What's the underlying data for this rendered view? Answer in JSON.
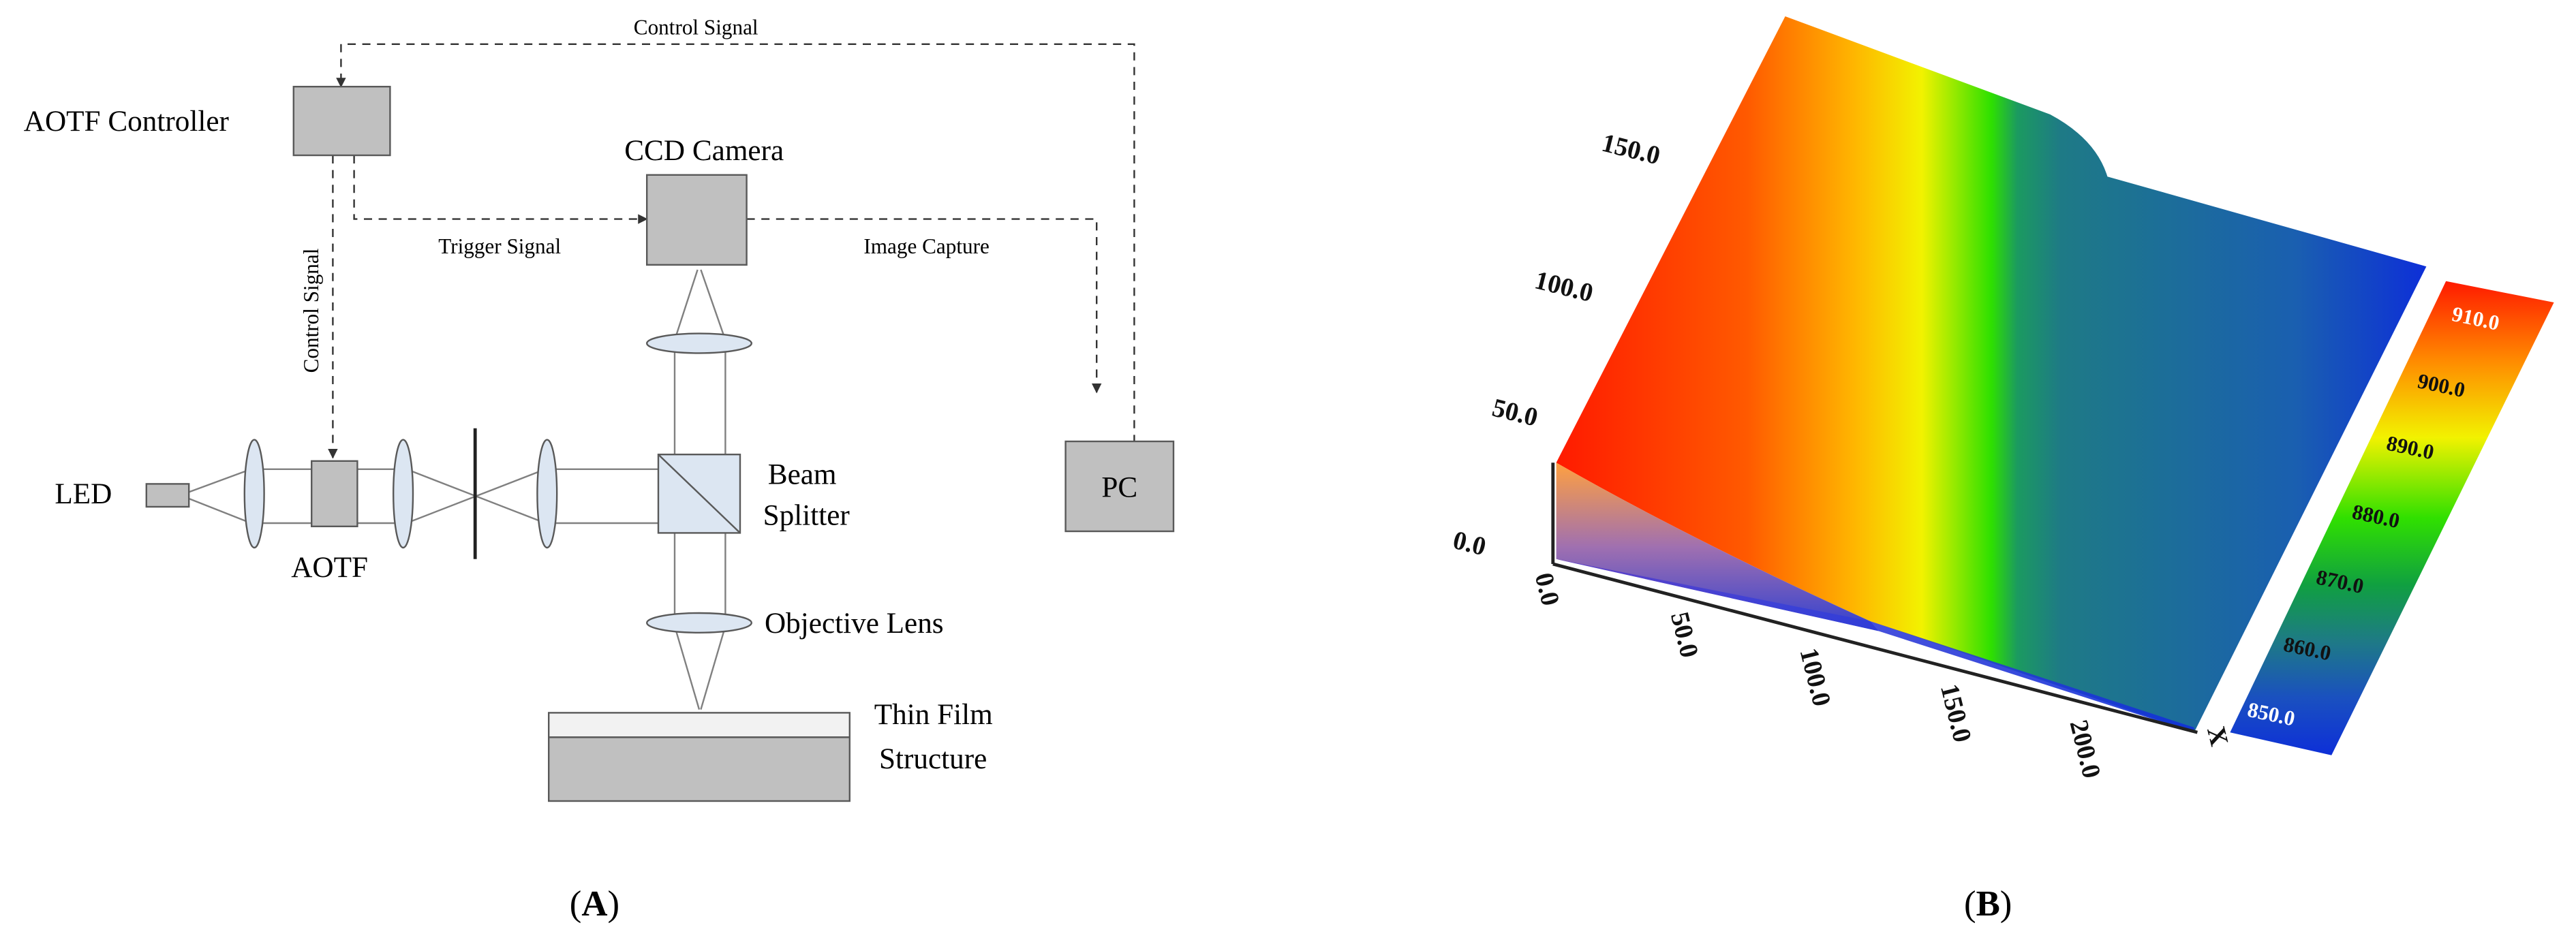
{
  "panel_a": {
    "caption_open": "(",
    "caption_letter": "A",
    "caption_close": ")",
    "labels": {
      "aotf_controller": "AOTF Controller",
      "control_signal_top": "Control Signal",
      "control_signal_side": "Control Signal",
      "ccd_camera": "CCD Camera",
      "trigger_signal": "Trigger Signal",
      "image_capture": "Image Capture",
      "led": "LED",
      "aotf": "AOTF",
      "beam": "Beam",
      "splitter": "Splitter",
      "pc": "PC",
      "objective_lens": "Objective Lens",
      "thin_film": "Thin Film",
      "structure": "Structure"
    },
    "colors": {
      "box_fill": "#c0c0c0",
      "lens_fill": "#dce6f2",
      "film_top": "#f2f2f2",
      "stroke": "#595959"
    }
  },
  "panel_b": {
    "caption_open": "(",
    "caption_letter": "B",
    "caption_close": ")",
    "y_ticks": [
      "0.0",
      "50.0",
      "100.0",
      "150.0"
    ],
    "x_ticks": [
      "0.0",
      "50.0",
      "100.0",
      "150.0",
      "200.0"
    ],
    "x_axis_label": "X",
    "colorbar_ticks": [
      "910.0",
      "900.0",
      "890.0",
      "880.0",
      "870.0",
      "860.0",
      "850.0"
    ],
    "colors": {
      "high": "#ff2a00",
      "mid_yellow": "#f5f500",
      "mid_green": "#22dd00",
      "teal": "#1e7a86",
      "low": "#1030d8"
    }
  }
}
